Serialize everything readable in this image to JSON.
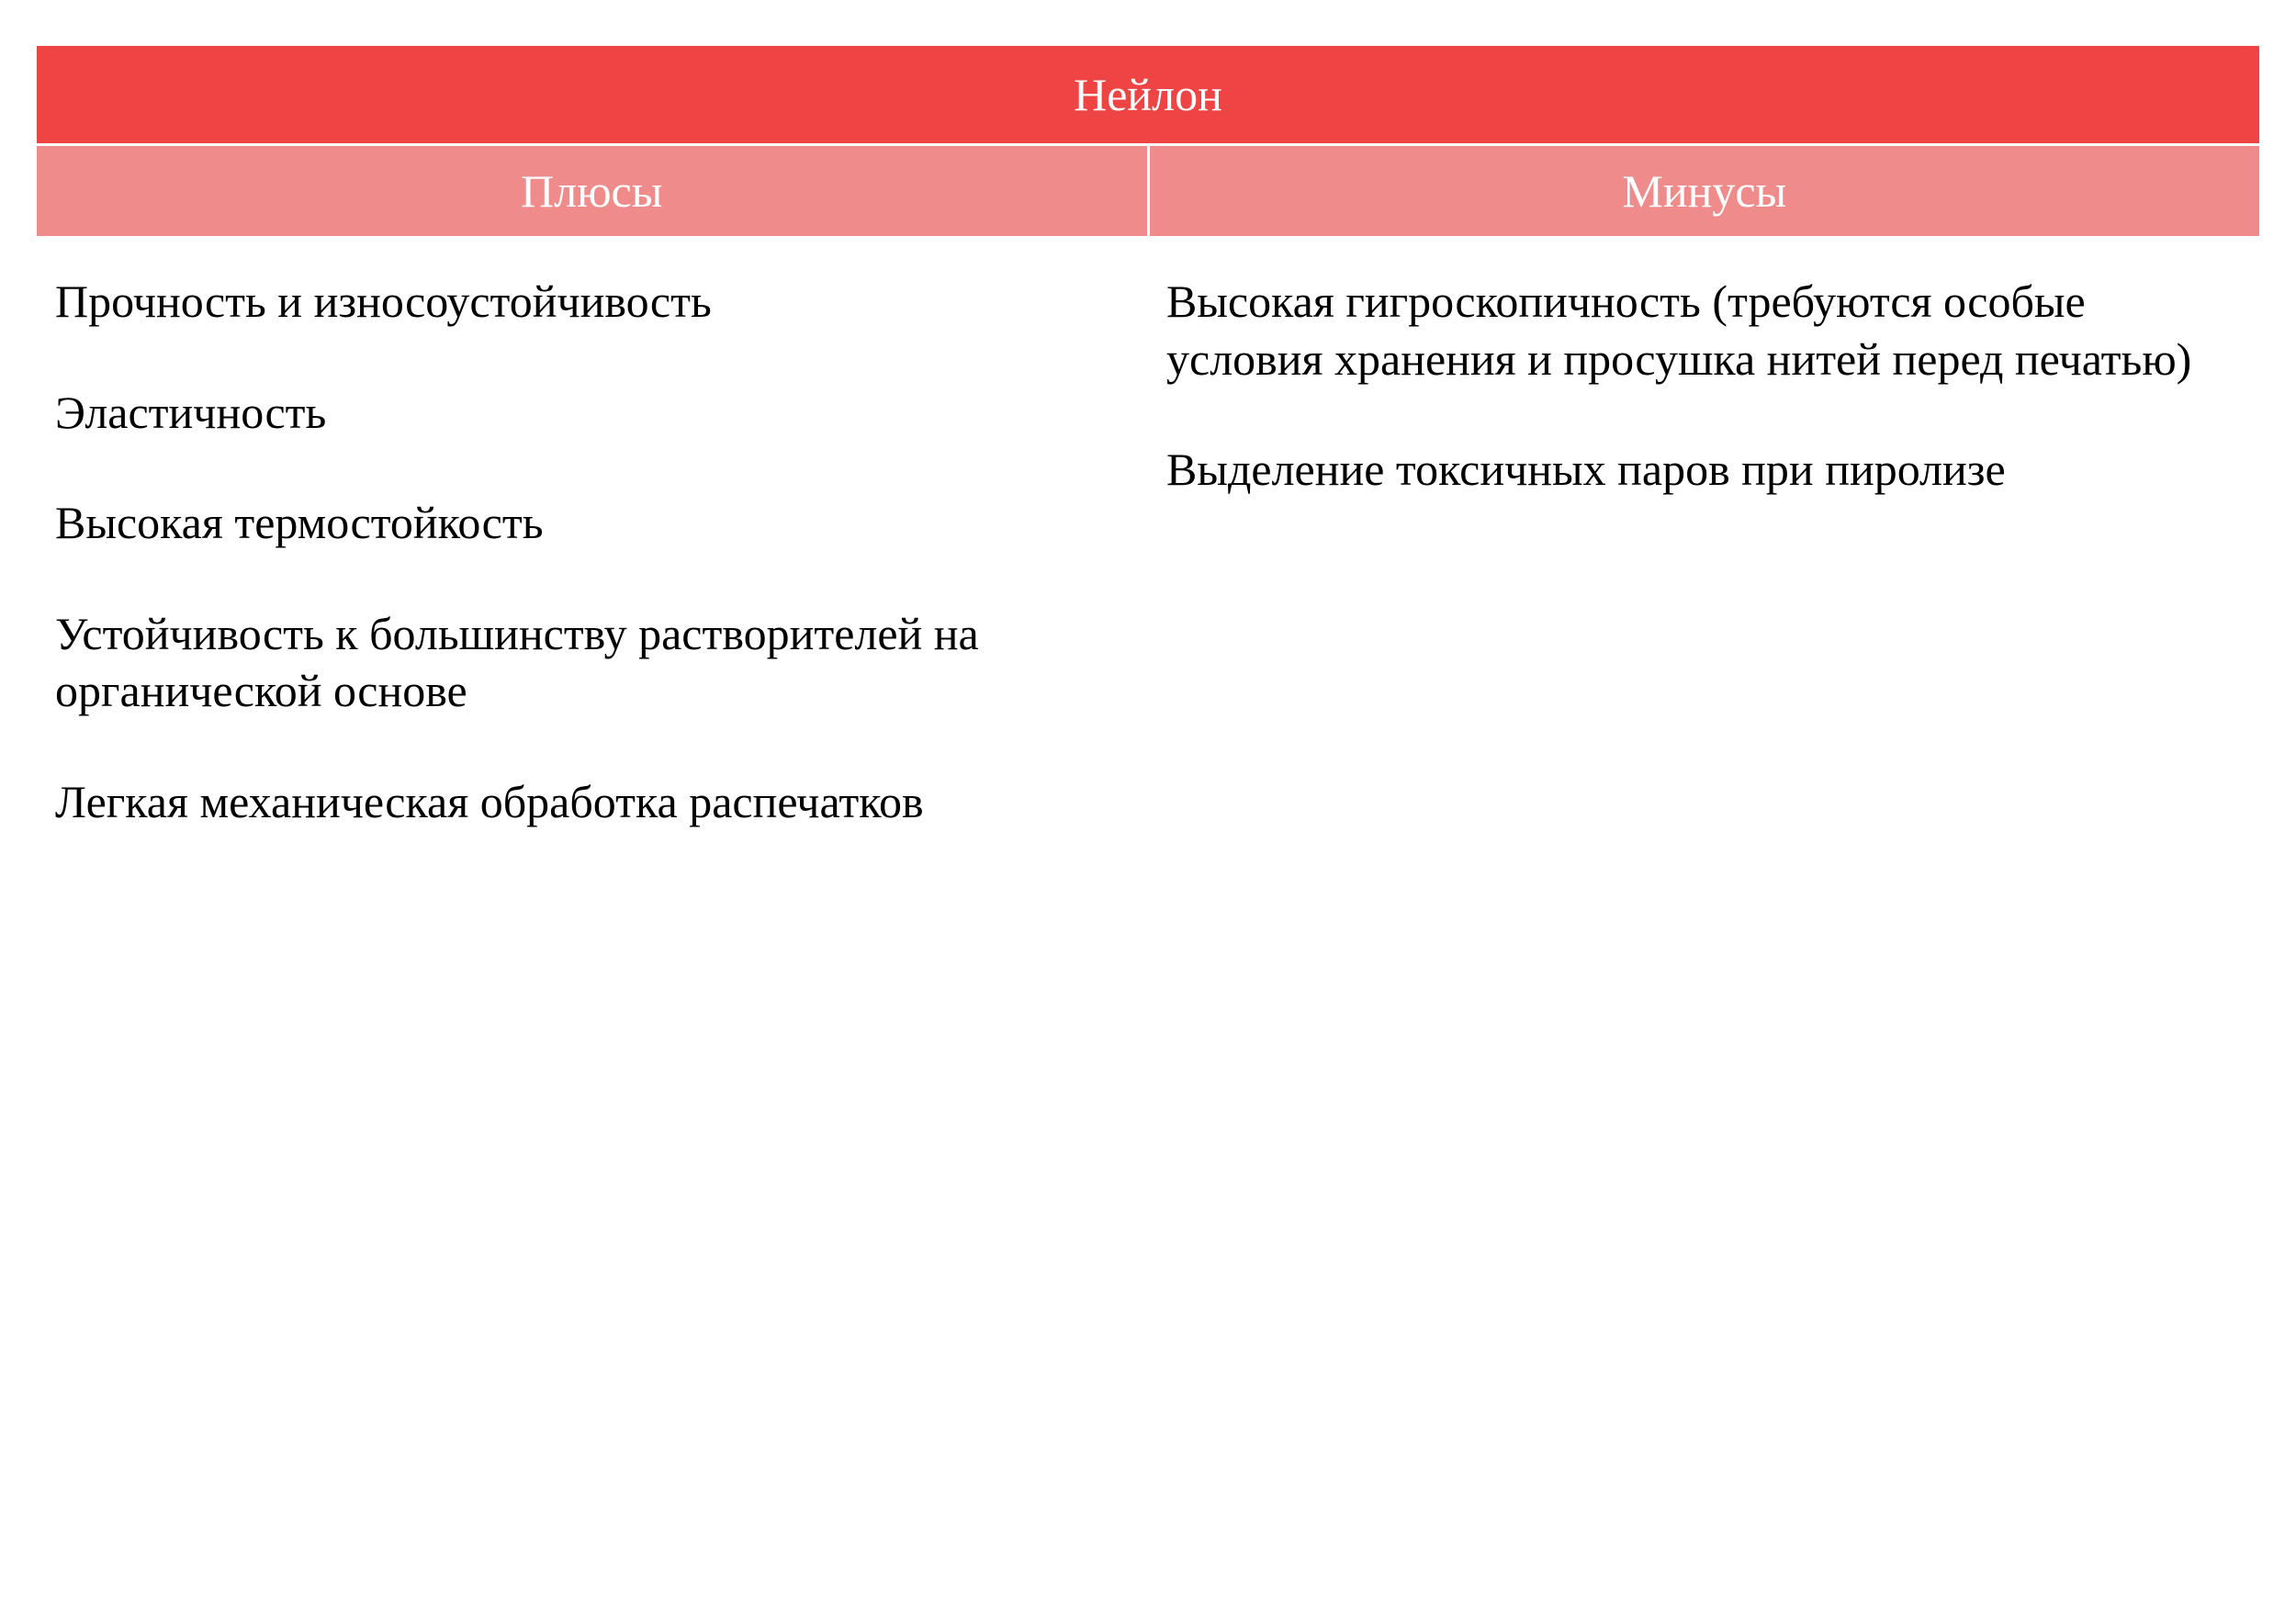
{
  "table": {
    "title": "Нейлон",
    "columns": [
      "Плюсы",
      "Минусы"
    ],
    "pros": [
      "Прочность и износоустойчивость",
      "Эластичность",
      "Высокая термостойкость",
      "Устойчивость к большинству растворителей на органической основе",
      "Легкая механическая обработка распечатков"
    ],
    "cons": [
      "Высокая гигроскопичность (требуются особые условия хранения и просушка нитей перед печатью)",
      "Выделение токсичных паров при пиролизе"
    ],
    "colors": {
      "title_bg": "#ee4444",
      "header_bg": "#ef8b8b",
      "header_text": "#ffffff",
      "body_text": "#000000",
      "background": "#ffffff",
      "divider": "#ffffff"
    },
    "typography": {
      "title_fontsize": 50,
      "header_fontsize": 50,
      "body_fontsize": 50,
      "font_family": "Georgia, 'Times New Roman', serif"
    }
  }
}
